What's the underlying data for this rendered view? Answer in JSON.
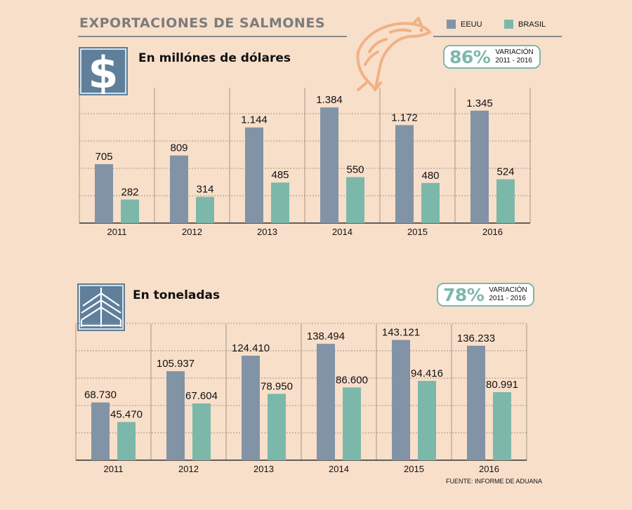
{
  "header": {
    "title": "EXPORTACIONES DE SALMONES",
    "legend": [
      {
        "label": "EEUU",
        "color": "#8293a6"
      },
      {
        "label": "BRASIL",
        "color": "#7cb8aa"
      }
    ]
  },
  "icons": {
    "header": "salmon-fish-icon",
    "section1": "dollar-sign-icon",
    "section2": "cargo-ship-icon"
  },
  "colors": {
    "background": "#f8dfca",
    "eeuu": "#8293a6",
    "brasil": "#7cb8aa",
    "icon": "#5f7f9a"
  },
  "sections": [
    {
      "title": "En millónes de dólares",
      "badge": {
        "percent": "86%",
        "label_line1": "VARIACIÓN",
        "label_line2": "2011 - 2016"
      }
    },
    {
      "title": "En  toneladas",
      "badge": {
        "percent": "78%",
        "label_line1": "VARIACIÓN",
        "label_line2": "2011 - 2016"
      }
    }
  ],
  "chart_data": [
    {
      "type": "bar",
      "title": "En millónes de dólares",
      "categories": [
        "2011",
        "2012",
        "2013",
        "2014",
        "2015",
        "2016"
      ],
      "series": [
        {
          "name": "EEUU",
          "values": [
            705,
            809,
            1144,
            1384,
            1172,
            1345
          ],
          "labels": [
            "705",
            "809",
            "1.144",
            "1.384",
            "1.172",
            "1.345"
          ]
        },
        {
          "name": "BRASIL",
          "values": [
            282,
            314,
            485,
            550,
            480,
            524
          ],
          "labels": [
            "282",
            "314",
            "485",
            "550",
            "480",
            "524"
          ]
        }
      ],
      "ylim": [
        0,
        1620
      ],
      "grid": true,
      "legend": "top-right"
    },
    {
      "type": "bar",
      "title": "En  toneladas",
      "categories": [
        "2011",
        "2012",
        "2013",
        "2014",
        "2015",
        "2016"
      ],
      "series": [
        {
          "name": "EEUU",
          "values": [
            68730,
            105937,
            124410,
            138494,
            143121,
            136233
          ],
          "labels": [
            "68.730",
            "105.937",
            "124.410",
            "138.494",
            "143.121",
            "136.233"
          ]
        },
        {
          "name": "BRASIL",
          "values": [
            45470,
            67604,
            78950,
            86600,
            94416,
            80991
          ],
          "labels": [
            "45.470",
            "67.604",
            "78.950",
            "86.600",
            "94.416",
            "80.991"
          ]
        }
      ],
      "ylim": [
        0,
        162000
      ],
      "grid": true,
      "legend": "top-right"
    }
  ],
  "source": "FUENTE: INFORME DE ADUANA"
}
